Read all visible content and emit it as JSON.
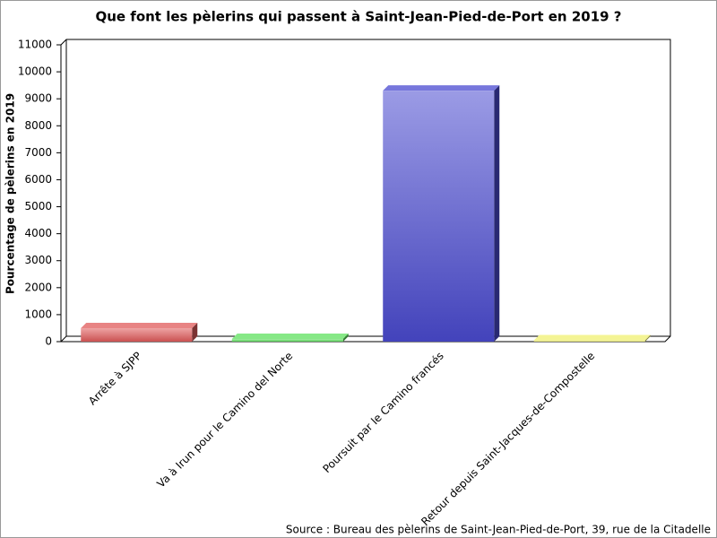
{
  "chart_data": {
    "type": "bar",
    "title": "Que font les pèlerins qui passent à Saint-Jean-Pied-de-Port en 2019 ?",
    "y_label": "Pourcentage de pèlerins en 2019",
    "categories": [
      "Arrête à SJPP",
      "Va à Irun pour le Camino del Norte",
      "Poursuit par le Camino francés",
      "Retour depuis Saint-Jacques-de-Compostelle"
    ],
    "values": [
      500,
      100,
      9300,
      50
    ],
    "colors": [
      "#e05a5a",
      "#5ee05e",
      "#4a4ad0",
      "#f0f070"
    ],
    "ylim": [
      0,
      11000
    ],
    "yticks": [
      0,
      1000,
      2000,
      3000,
      4000,
      5000,
      6000,
      7000,
      8000,
      9000,
      10000,
      11000
    ],
    "grid": false,
    "source": "Source : Bureau des pèlerins de Saint-Jean-Pied-de-Port, 39, rue de la Citadelle"
  }
}
